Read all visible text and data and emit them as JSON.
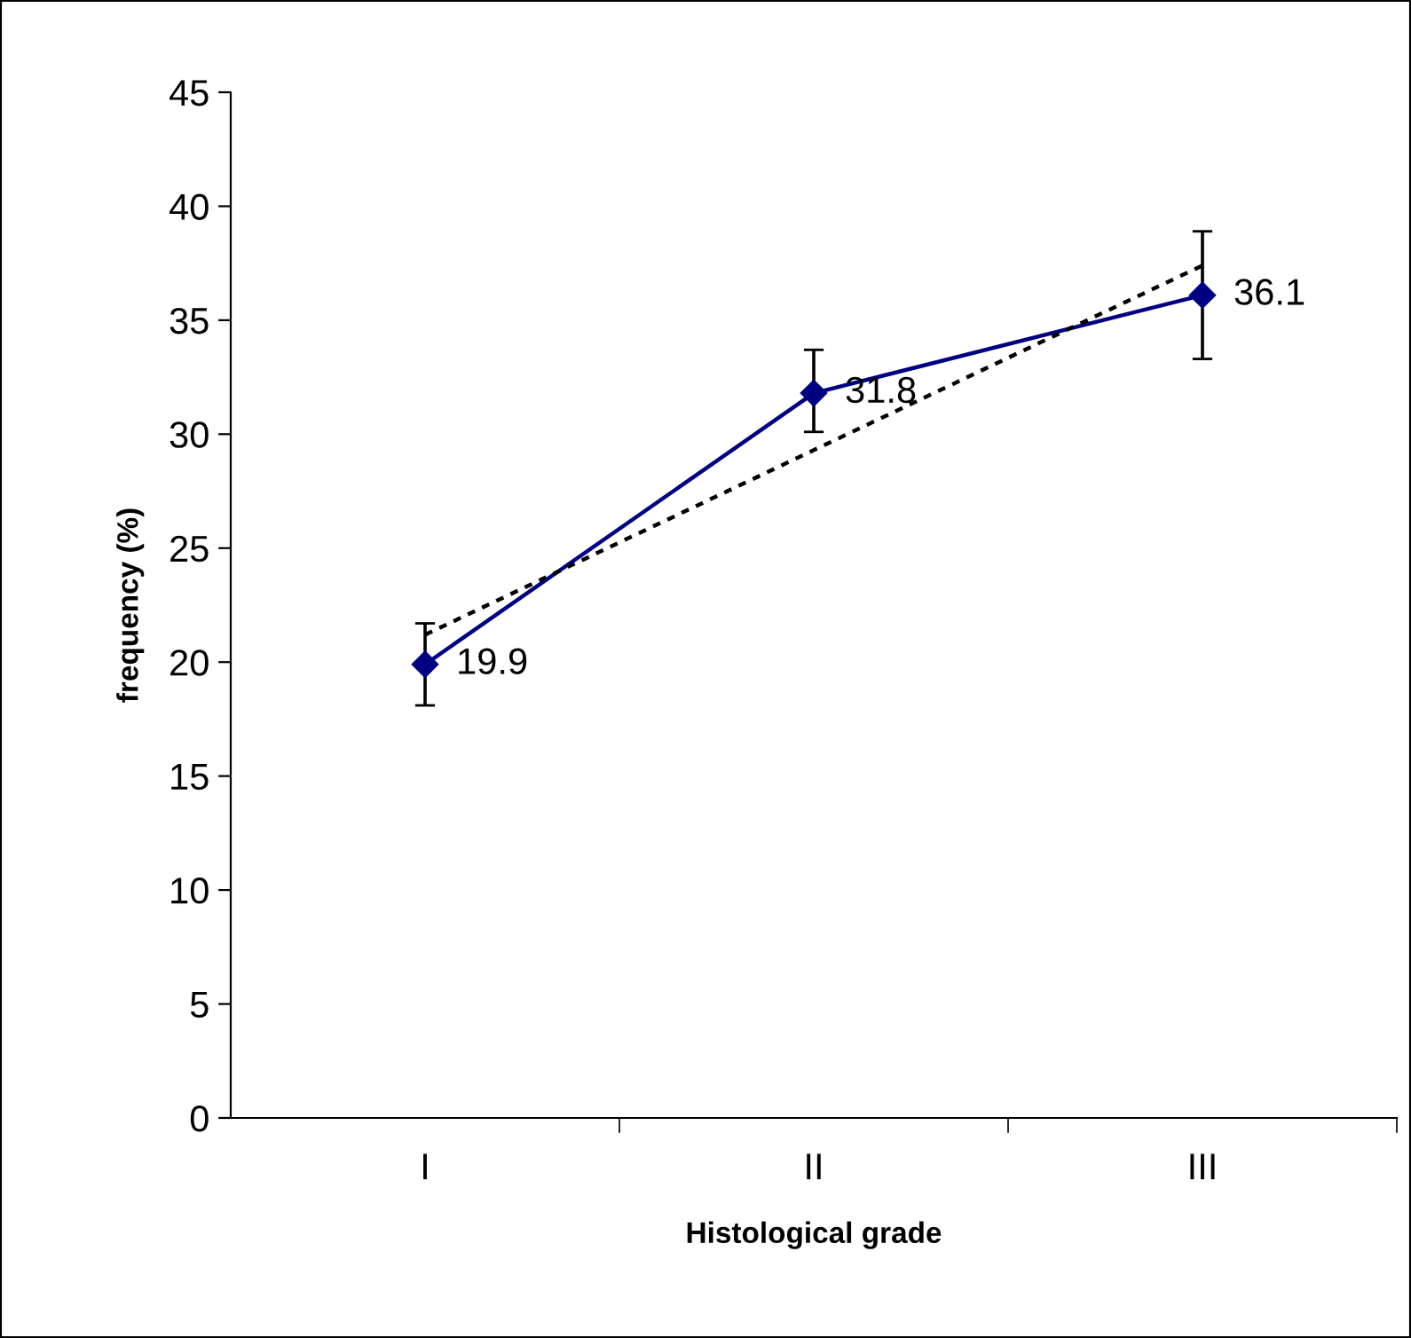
{
  "chart_data": {
    "type": "line",
    "xlabel": "Histological grade",
    "ylabel": "frequency (%)",
    "categories": [
      "I",
      "II",
      "III"
    ],
    "series": [
      {
        "color": "#000080",
        "values": [
          19.9,
          31.8,
          36.1
        ],
        "errors": [
          [
            18.1,
            21.7
          ],
          [
            30.1,
            33.7
          ],
          [
            33.3,
            38.9
          ]
        ],
        "marker": "diamond",
        "line_style": "solid",
        "data_labels": true
      },
      {
        "color": "#000000",
        "values": [
          21.2,
          29.3,
          37.4
        ],
        "marker": "none",
        "line_style": "dotted"
      }
    ],
    "ylim": [
      0,
      45
    ],
    "yticks": [
      0,
      5,
      10,
      15,
      20,
      25,
      30,
      35,
      40,
      45
    ],
    "grid": false,
    "legend": false
  }
}
